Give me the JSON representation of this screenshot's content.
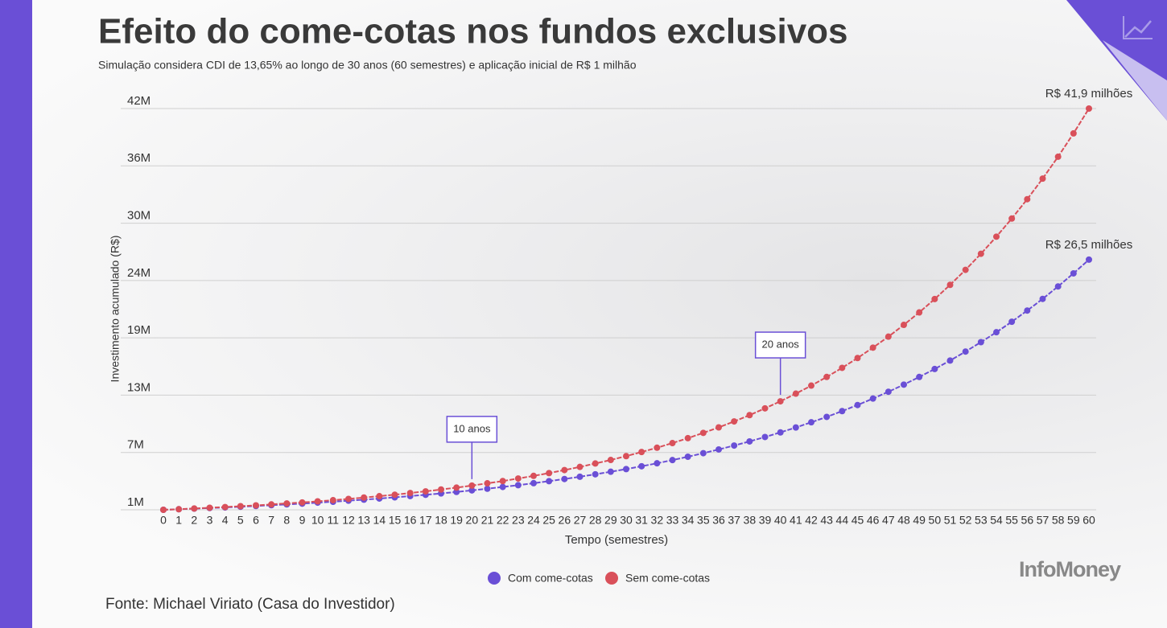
{
  "chart_data": {
    "type": "line",
    "title": "Efeito do come-cotas nos fundos exclusivos",
    "subtitle": "Simulação considera CDI de 13,65% ao longo de 30 anos (60 semestres) e aplicação inicial de R$ 1 milhão",
    "x_label": "Tempo (semestres)",
    "y_label": "Investimento acumulado (R$)",
    "source": "Fonte: Michael Viriato (Casa do Investidor)",
    "brand": "InfoMoney",
    "x": [
      0,
      1,
      2,
      3,
      4,
      5,
      6,
      7,
      8,
      9,
      10,
      11,
      12,
      13,
      14,
      15,
      16,
      17,
      18,
      19,
      20,
      21,
      22,
      23,
      24,
      25,
      26,
      27,
      28,
      29,
      30,
      31,
      32,
      33,
      34,
      35,
      36,
      37,
      38,
      39,
      40,
      41,
      42,
      43,
      44,
      45,
      46,
      47,
      48,
      49,
      50,
      51,
      52,
      53,
      54,
      55,
      56,
      57,
      58,
      59,
      60
    ],
    "xlim": [
      0,
      60
    ],
    "xticks": [
      0,
      1,
      2,
      3,
      4,
      5,
      6,
      7,
      8,
      9,
      10,
      11,
      12,
      13,
      14,
      15,
      16,
      17,
      18,
      19,
      20,
      21,
      22,
      23,
      24,
      25,
      26,
      27,
      28,
      29,
      30,
      31,
      32,
      33,
      34,
      35,
      36,
      37,
      38,
      39,
      40,
      41,
      42,
      43,
      44,
      45,
      46,
      47,
      48,
      49,
      50,
      51,
      52,
      53,
      54,
      55,
      56,
      57,
      58,
      59,
      60
    ],
    "ylim": [
      1,
      41.9
    ],
    "yticks": [
      {
        "value": 1,
        "label": "1M"
      },
      {
        "value": 6.84,
        "label": "7M"
      },
      {
        "value": 12.69,
        "label": "13M"
      },
      {
        "value": 18.53,
        "label": "19M"
      },
      {
        "value": 24.37,
        "label": "24M"
      },
      {
        "value": 30.21,
        "label": "30M"
      },
      {
        "value": 36.06,
        "label": "36M"
      },
      {
        "value": 41.9,
        "label": "42M"
      }
    ],
    "grid": true,
    "series": [
      {
        "name": "Com come-cotas",
        "color": "#6a4fd6",
        "end_label": "R$ 26,5 milhões",
        "values": [
          1,
          1.06,
          1.12,
          1.18,
          1.24,
          1.31,
          1.39,
          1.47,
          1.55,
          1.63,
          1.73,
          1.82,
          1.93,
          2.03,
          2.15,
          2.27,
          2.4,
          2.53,
          2.67,
          2.82,
          2.98,
          3.15,
          3.33,
          3.51,
          3.71,
          3.92,
          4.14,
          4.37,
          4.62,
          4.88,
          5.15,
          5.44,
          5.74,
          6.07,
          6.41,
          6.77,
          7.15,
          7.55,
          7.97,
          8.42,
          8.89,
          9.39,
          9.92,
          10.47,
          11.06,
          11.68,
          12.34,
          13.03,
          13.76,
          14.54,
          15.35,
          16.21,
          17.13,
          18.09,
          19.1,
          20.17,
          21.31,
          22.5,
          23.77,
          25.1,
          26.5
        ]
      },
      {
        "name": "Sem come-cotas",
        "color": "#d9505a",
        "end_label": "R$ 41,9 milhões",
        "values": [
          1,
          1.06,
          1.13,
          1.21,
          1.28,
          1.37,
          1.45,
          1.55,
          1.65,
          1.75,
          1.86,
          1.98,
          2.11,
          2.25,
          2.39,
          2.54,
          2.71,
          2.88,
          3.07,
          3.26,
          3.47,
          3.7,
          3.93,
          4.19,
          4.46,
          4.74,
          5.05,
          5.37,
          5.72,
          6.08,
          6.47,
          6.89,
          7.33,
          7.8,
          8.3,
          8.84,
          9.4,
          10.01,
          10.65,
          11.34,
          12.06,
          12.84,
          13.66,
          14.54,
          15.47,
          16.47,
          17.53,
          18.65,
          19.85,
          21.12,
          22.48,
          23.93,
          25.46,
          27.1,
          28.84,
          30.69,
          32.66,
          34.76,
          36.99,
          39.37,
          41.9
        ]
      }
    ],
    "annotations": [
      {
        "text": "10 anos",
        "x": 20
      },
      {
        "text": "20 anos",
        "x": 40
      }
    ]
  }
}
